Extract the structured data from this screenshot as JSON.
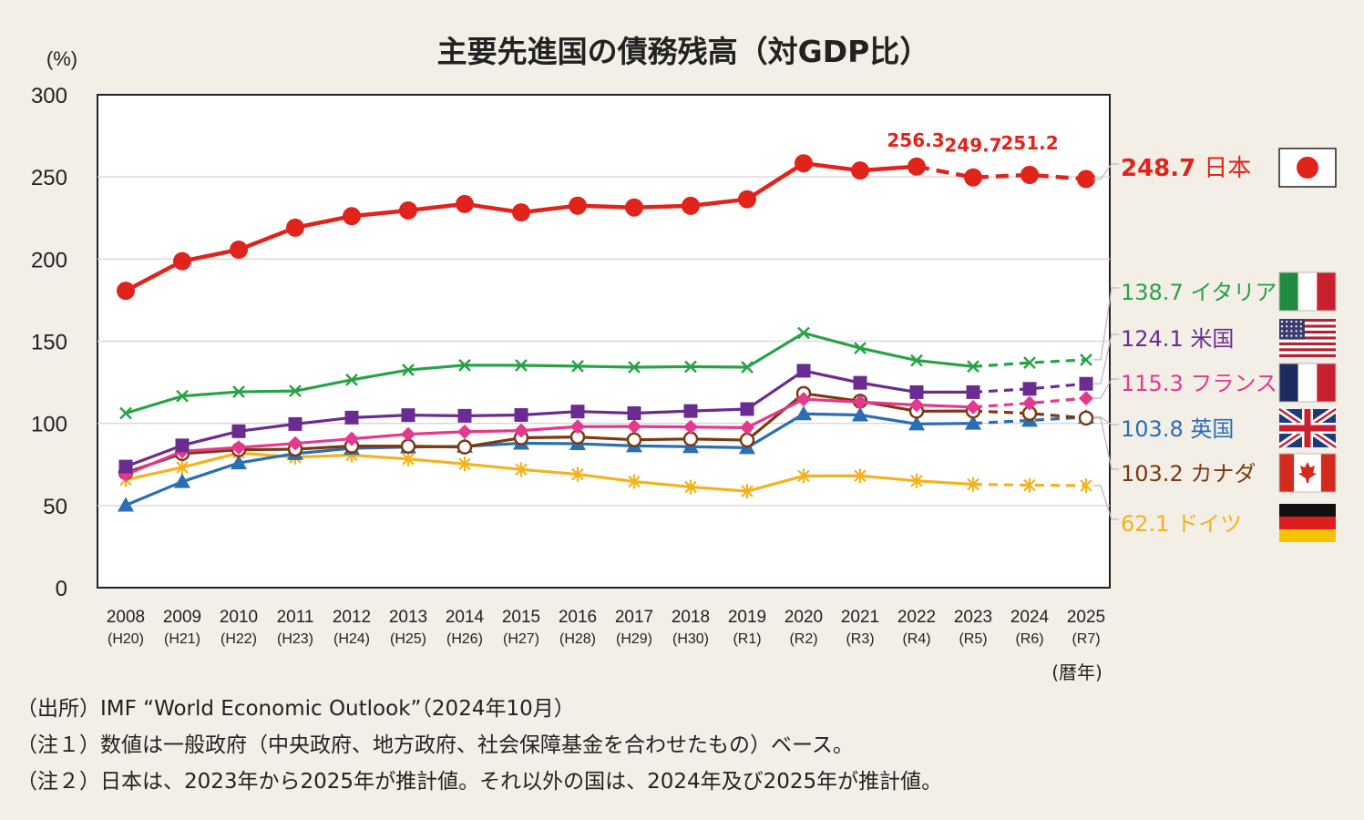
{
  "title": "主要先進国の債務残高（対GDP比）",
  "notes": [
    "（出所）IMF “World Economic Outlook”（2024年10月）",
    "（注１）数値は一般政府（中央政府、地方政府、社会保障基金を合わせたもの）ベース。",
    "（注２）日本は、2023年から2025年が推計値。それ以外の国は、2024年及び2025年が推計値。"
  ],
  "colors": {
    "japan": "#e0231b",
    "italy": "#27a346",
    "us": "#6b2c91",
    "france": "#e5388f",
    "uk": "#2a6eb4",
    "canada": "#7b3a12",
    "germany": "#f2b31c"
  },
  "chart_data": {
    "type": "line",
    "ylabel": "(%)",
    "xlabel": "(暦年)",
    "ylim": [
      0,
      300
    ],
    "yticks": [
      "0",
      "50",
      "100",
      "150",
      "200",
      "250",
      "300"
    ],
    "grid": true,
    "x": [
      "2008",
      "2009",
      "2010",
      "2011",
      "2012",
      "2013",
      "2014",
      "2015",
      "2016",
      "2017",
      "2018",
      "2019",
      "2020",
      "2021",
      "2022",
      "2023",
      "2024",
      "2025"
    ],
    "x_sub": [
      "(H20)",
      "(H21)",
      "(H22)",
      "(H23)",
      "(H24)",
      "(H25)",
      "(H26)",
      "(H27)",
      "(H28)",
      "(H29)",
      "(H30)",
      "(R1)",
      "(R2)",
      "(R3)",
      "(R4)",
      "(R5)",
      "(R6)",
      "(R7)"
    ],
    "series": [
      {
        "key": "japan",
        "name": "日本",
        "value_label": "248.7",
        "marker": "circle",
        "estimate_from": 2022,
        "values": [
          180.7,
          198.7,
          205.7,
          219.1,
          226.1,
          229.6,
          233.5,
          228.4,
          232.5,
          231.4,
          232.4,
          236.4,
          258.3,
          253.9,
          256.3,
          249.7,
          251.2,
          248.7
        ]
      },
      {
        "key": "italy",
        "name": "イタリア",
        "value_label": "138.7",
        "marker": "x",
        "estimate_from": 2023,
        "values": [
          106.2,
          116.6,
          119.2,
          119.7,
          126.5,
          132.5,
          135.4,
          135.3,
          134.8,
          134.2,
          134.5,
          134.2,
          155.0,
          145.8,
          138.3,
          134.6,
          136.9,
          138.7
        ]
      },
      {
        "key": "us",
        "name": "米国",
        "value_label": "124.1",
        "marker": "square",
        "estimate_from": 2023,
        "values": [
          73.7,
          86.6,
          95.2,
          99.6,
          103.5,
          105.0,
          104.6,
          105.1,
          107.2,
          106.2,
          107.5,
          108.7,
          132.0,
          124.7,
          119.0,
          119.0,
          121.0,
          124.1
        ]
      },
      {
        "key": "france",
        "name": "フランス",
        "value_label": "115.3",
        "marker": "diamond",
        "estimate_from": 2023,
        "values": [
          68.8,
          83.0,
          85.3,
          87.8,
          90.6,
          93.4,
          94.9,
          95.6,
          98.0,
          98.1,
          97.8,
          97.4,
          114.7,
          112.9,
          111.2,
          109.9,
          112.3,
          115.3
        ]
      },
      {
        "key": "uk",
        "name": "英国",
        "value_label": "103.8",
        "marker": "triangle",
        "estimate_from": 2023,
        "values": [
          50.2,
          64.5,
          75.9,
          81.6,
          84.8,
          85.6,
          86.0,
          87.9,
          87.6,
          86.3,
          85.8,
          85.2,
          105.8,
          105.1,
          99.6,
          100.0,
          101.8,
          103.8
        ]
      },
      {
        "key": "canada",
        "name": "カナダ",
        "value_label": "103.2",
        "marker": "ring",
        "estimate_from": 2023,
        "values": [
          70.0,
          81.6,
          83.9,
          84.3,
          86.2,
          86.1,
          85.6,
          91.2,
          91.7,
          90.0,
          90.5,
          89.8,
          118.2,
          113.5,
          107.4,
          107.5,
          106.1,
          103.2
        ]
      },
      {
        "key": "germany",
        "name": "ドイツ",
        "value_label": "62.1",
        "marker": "star",
        "estimate_from": 2023,
        "values": [
          65.7,
          73.2,
          82.0,
          79.4,
          80.7,
          78.3,
          75.3,
          71.9,
          69.0,
          64.6,
          61.3,
          58.7,
          68.0,
          68.1,
          65.0,
          62.9,
          62.4,
          62.1
        ]
      }
    ],
    "annotations": [
      {
        "year": "2022",
        "text": "256.3"
      },
      {
        "year": "2023",
        "text": "249.7"
      },
      {
        "year": "2024",
        "text": "251.2"
      }
    ]
  }
}
